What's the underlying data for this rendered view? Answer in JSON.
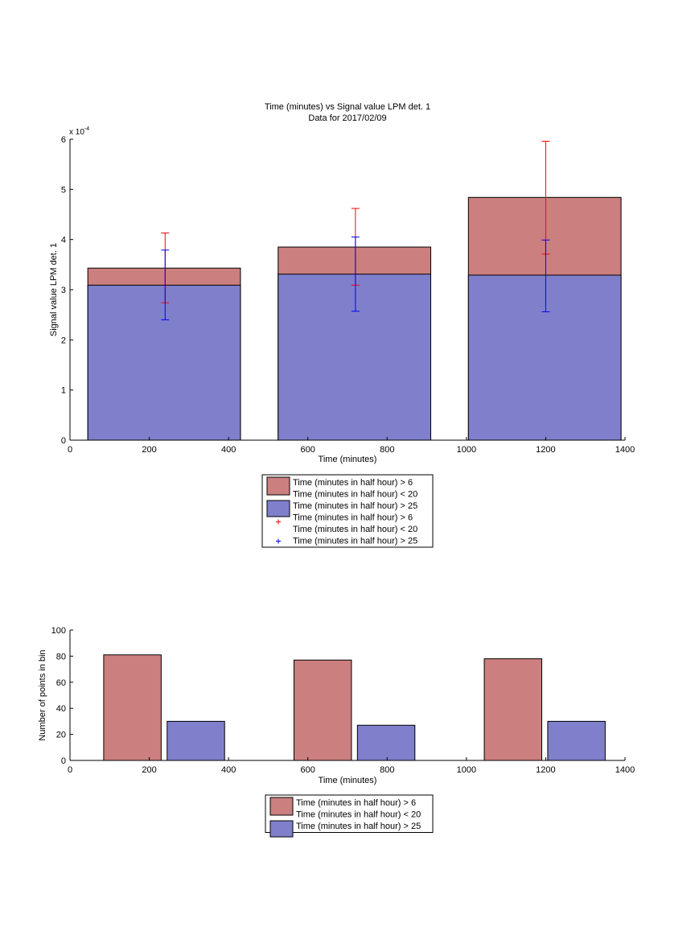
{
  "chart_data": [
    {
      "type": "bar",
      "title": "Time (minutes) vs Signal value LPM det. 1",
      "subtitle": "Data for 2017/02/09",
      "xlabel": "Time (minutes)",
      "ylabel": "Signal value LPM det. 1",
      "y_exponent_label": "x 10",
      "y_exponent_power": "-4",
      "xlim": [
        0,
        1400
      ],
      "ylim": [
        0,
        6
      ],
      "x_ticks": [
        0,
        200,
        400,
        600,
        800,
        1000,
        1200,
        1400
      ],
      "y_ticks": [
        0,
        1,
        2,
        3,
        4,
        5,
        6
      ],
      "grid": false,
      "legend_position": "below",
      "bars": [
        {
          "x_start": 45,
          "x_end": 430,
          "red_top": 3.43,
          "blue_top": 3.09
        },
        {
          "x_start": 525,
          "x_end": 910,
          "red_top": 3.85,
          "blue_top": 3.31
        },
        {
          "x_start": 1005,
          "x_end": 1390,
          "red_top": 4.84,
          "blue_top": 3.29
        }
      ],
      "errorbars": [
        {
          "series": "red",
          "x": 240,
          "low": 2.74,
          "high": 4.13
        },
        {
          "series": "red",
          "x": 720,
          "low": 3.09,
          "high": 4.62
        },
        {
          "series": "red",
          "x": 1200,
          "low": 3.71,
          "high": 5.96
        },
        {
          "series": "blue",
          "x": 240,
          "low": 2.4,
          "high": 3.79
        },
        {
          "series": "blue",
          "x": 720,
          "low": 2.57,
          "high": 4.05
        },
        {
          "series": "blue",
          "x": 1200,
          "low": 2.56,
          "high": 3.99
        }
      ],
      "legend": [
        {
          "kind": "patch",
          "color": "#cc7f7f",
          "lines": [
            "Time (minutes in half hour) > 6",
            "Time (minutes in half hour) < 20"
          ]
        },
        {
          "kind": "patch",
          "color": "#7f7fcc",
          "lines": [
            "Time (minutes in half hour) > 25"
          ]
        },
        {
          "kind": "marker",
          "color": "#ff0000",
          "lines": [
            "Time (minutes in half hour) > 6",
            "Time (minutes in half hour) < 20"
          ]
        },
        {
          "kind": "marker",
          "color": "#0000ff",
          "lines": [
            "Time (minutes in half hour) > 25"
          ]
        }
      ]
    },
    {
      "type": "bar",
      "xlabel": "Time (minutes)",
      "ylabel": "Number of points in bin",
      "xlim": [
        0,
        1400
      ],
      "ylim": [
        0,
        100
      ],
      "x_ticks": [
        0,
        200,
        400,
        600,
        800,
        1000,
        1200,
        1400
      ],
      "y_ticks": [
        0,
        20,
        40,
        60,
        80,
        100
      ],
      "grid": false,
      "legend_position": "below",
      "bars": [
        {
          "series": "red",
          "x_start": 85,
          "x_end": 230,
          "value": 81
        },
        {
          "series": "blue",
          "x_start": 245,
          "x_end": 390,
          "value": 30
        },
        {
          "series": "red",
          "x_start": 565,
          "x_end": 710,
          "value": 77
        },
        {
          "series": "blue",
          "x_start": 725,
          "x_end": 870,
          "value": 27
        },
        {
          "series": "red",
          "x_start": 1045,
          "x_end": 1190,
          "value": 78
        },
        {
          "series": "blue",
          "x_start": 1205,
          "x_end": 1350,
          "value": 30
        }
      ],
      "legend": [
        {
          "kind": "patch",
          "color": "#cc7f7f",
          "lines": [
            "Time (minutes in half hour) > 6",
            "Time (minutes in half hour) < 20"
          ]
        },
        {
          "kind": "patch",
          "color": "#7f7fcc",
          "lines": [
            "Time (minutes in half hour) > 25"
          ]
        }
      ]
    }
  ],
  "colors": {
    "red_fill": "#cc7f7f",
    "blue_fill": "#7f7fcc",
    "red_err": "#ff0000",
    "blue_err": "#0000ff",
    "axis": "#000000"
  }
}
